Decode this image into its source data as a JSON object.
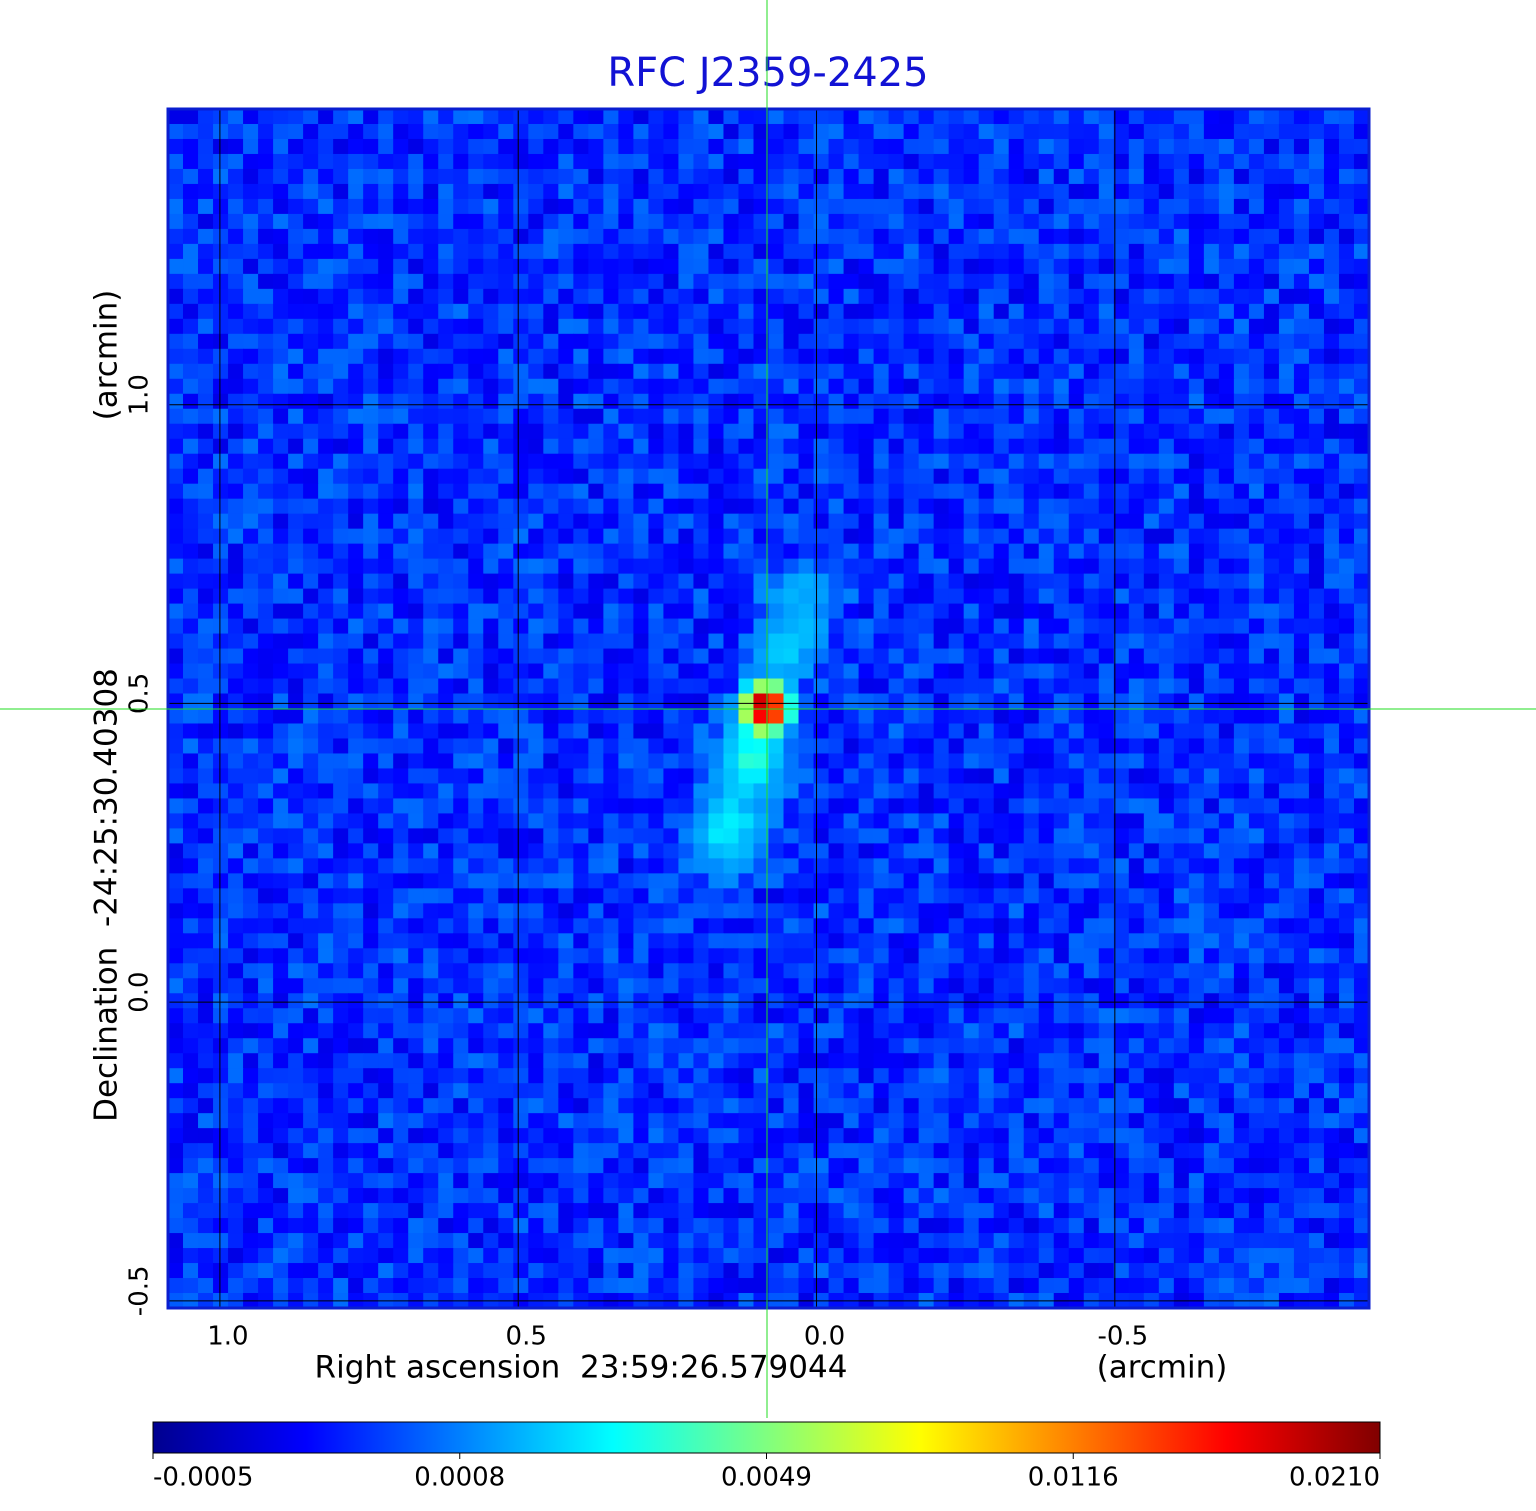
{
  "chart_data": {
    "type": "heatmap",
    "title": "RFC J2359-2425",
    "x_label": "Right ascension  23:59:26.579044",
    "x_unit": "(arcmin)",
    "y_label": "Declination  -24:25:30.40308",
    "y_unit": "(arcmin)",
    "xlim": [
      1.087,
      -0.926
    ],
    "ylim": [
      -0.512,
      1.495
    ],
    "xticks": [
      {
        "value": 1,
        "label": "1.0"
      },
      0.5,
      {
        "value": 0,
        "label": "0.0"
      },
      -0.5
    ],
    "yticks": [
      -0.5,
      {
        "value": 0,
        "label": "0.0"
      },
      0.5,
      {
        "value": 1,
        "label": "1.0"
      }
    ],
    "grid": true,
    "colormap": "jet",
    "colorbar_ticks": [
      -0.0005,
      0.0008,
      0.0049,
      0.0116,
      {
        "value": 0.021,
        "label": "0.0210"
      }
    ],
    "x": [
      0.084,
      0.11,
      0.138,
      0.163,
      0.05,
      0.028
    ],
    "y": [
      0.493,
      0.408,
      0.307,
      0.257,
      0.592,
      0.676
    ],
    "values": [
      0.021,
      0.003,
      0.0015,
      0.0012,
      0.0015,
      0.0012
    ]
  }
}
